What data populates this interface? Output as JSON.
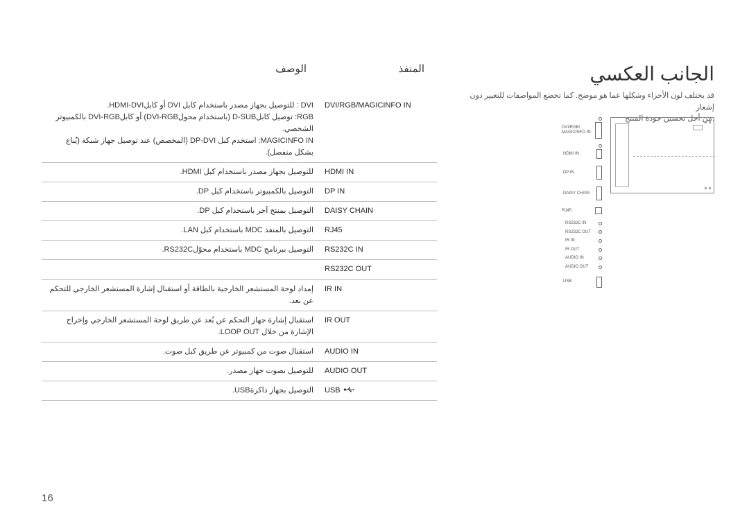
{
  "title": "الجانب العكسي",
  "subtitle_line1": "قد يختلف لون الأجزاء وشكلها عما هو موضح. كما تخضع المواصفات للتغيير دون إشعار",
  "subtitle_line2": "من أجل تحسين جودة المنتج.",
  "header_port": "المنفذ",
  "header_desc": "الوصف",
  "page_number": "16",
  "usb_glyph": "⬲",
  "diagram_labels": {
    "dvi": "DVI/RGB/\nMAGICINFO IN",
    "hdmi": "HDMI IN",
    "dpin": "DP IN",
    "daisy": "DAISY\nCHAIN",
    "rj45": "RJ45",
    "rs232c_in": "RS232C\nIN",
    "rs232c_out": "RS232C\nOUT",
    "ir_in": "IR IN",
    "ir_out": "IR OUT",
    "audio_in": "AUDIO IN",
    "audio_out": "AUDIO\nOUT",
    "usb": "USB"
  },
  "rows": [
    {
      "port": "DVI/RGB/MAGICINFO IN",
      "desc": "DVI : للتوصيل بجهاز مصدر باستخدام كابل DVI أو كابلHDMI-DVI.\nRGB: توصيل كابلD-SUB (باستخدام محولDVI-RGB) أو كابلDVI-RGB بالكمبيوتر الشخصي.\nMAGICINFO IN: استخدم كبل DP-DVI (المخصص) عند توصيل جهاز شبكة (يُباع بشكل منفصل)."
    },
    {
      "port": "HDMI IN",
      "desc": "للتوصيل بجهاز مصدر باستخدام كبل HDMI."
    },
    {
      "port": "DP IN",
      "desc": "التوصيل بالكمبيوتر باستخدام كبل DP."
    },
    {
      "port": "DAISY CHAIN",
      "desc": "التوصيل بمنتج آخر باستخدام كبل DP."
    },
    {
      "port": "RJ45",
      "desc": "التوصيل بالمنفذ MDC باستخدام كبل LAN."
    },
    {
      "port": "RS232C IN",
      "desc": "التوصيل ببرنامج MDC باستخدام محوّلRS232C."
    },
    {
      "port": "RS232C OUT",
      "desc": ""
    },
    {
      "port": "IR IN",
      "desc": "إمداد لوحة المستشعر الخارجية بالطاقة أو استقبال إشارة المستشعر الخارجي للتحكم عن بعد."
    },
    {
      "port": "IR OUT",
      "desc": "استقبال إشارة جهاز التحكم عن بُعد عن طريق لوحة المستشعر الخارجي وإخراج الإشارة من خلال LOOP OUT."
    },
    {
      "port": "AUDIO IN",
      "desc": "استقبال صوت من كمبيوتر عن طريق كبل صوت."
    },
    {
      "port": "AUDIO OUT",
      "desc": "للتوصيل بصوت جهاز مصدر."
    },
    {
      "port": "USB",
      "desc": "التوصيل بجهاز ذاكرةUSB.",
      "has_usb_icon": true
    }
  ]
}
